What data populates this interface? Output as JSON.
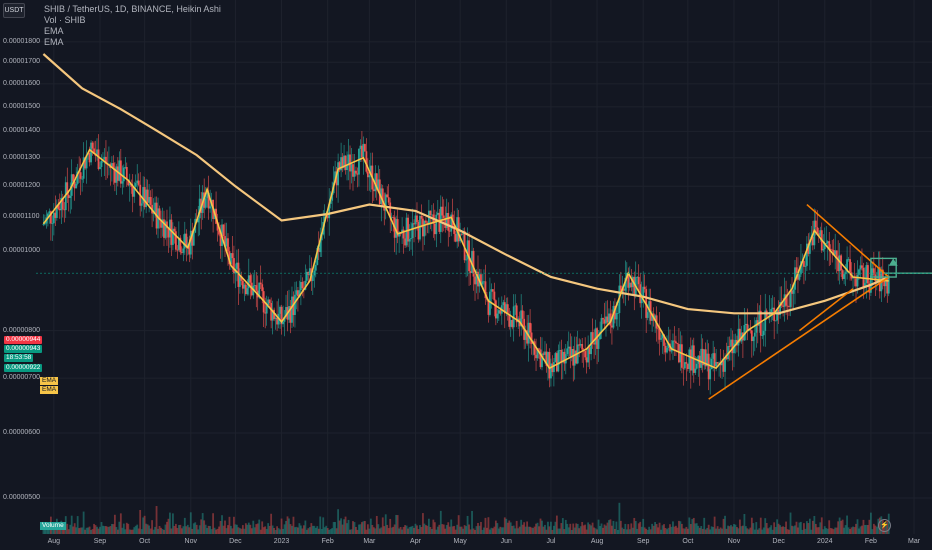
{
  "header": {
    "symbol_button": "USDT",
    "title": "SHIB / TetherUS, 1D, BINANCE, Heikin Ashi",
    "indicators": [
      "Vol · SHIB",
      "EMA",
      "EMA"
    ]
  },
  "price_axis": {
    "labels": [
      "0.00001800",
      "0.00001700",
      "0.00001600",
      "0.00001500",
      "0.00001400",
      "0.00001300",
      "0.00001200",
      "0.00001100",
      "0.00001000",
      "0.00000800",
      "0.00000700",
      "0.00000600",
      "0.00000500"
    ],
    "tags": [
      {
        "text": "0.00000944",
        "color": "#f23645"
      },
      {
        "text": "0.00000943",
        "color": "#089981"
      },
      {
        "text": "18:53:58",
        "color": "#089981"
      },
      {
        "text": "0.00000922",
        "color": "#089981"
      }
    ],
    "ema_tags": [
      "EMA",
      "EMA"
    ],
    "volume_tag": "Volume"
  },
  "time_axis": {
    "labels": [
      "Aug",
      "Sep",
      "Oct",
      "Nov",
      "Dec",
      "2023",
      "Feb",
      "Mar",
      "Apr",
      "May",
      "Jun",
      "Jul",
      "Aug",
      "Sep",
      "Oct",
      "Nov",
      "Dec",
      "2024",
      "Feb",
      "Mar"
    ]
  },
  "colors": {
    "up": "#26a69a",
    "down": "#ef5350",
    "ema_fast": "#f7c548",
    "ema_slow": "#f5c77e",
    "trend": "#f57c00",
    "target": "#4caf8f"
  },
  "chart_data": {
    "type": "line",
    "title": "SHIB / TetherUS, 1D, BINANCE, Heikin Ashi",
    "series": [
      {
        "name": "EMA",
        "x": [
          "2022-07-25",
          "2022-08-20",
          "2022-09-15",
          "2022-10-10",
          "2022-11-05",
          "2022-12-01",
          "2023-01-01",
          "2023-02-01",
          "2023-03-01",
          "2023-04-01",
          "2023-05-01",
          "2023-06-01",
          "2023-07-01",
          "2023-08-01",
          "2023-09-01",
          "2023-10-01",
          "2023-11-01",
          "2023-12-01",
          "2024-01-01",
          "2024-02-01",
          "2024-02-13"
        ],
        "values": [
          1.74e-05,
          1.58e-05,
          1.49e-05,
          1.4e-05,
          1.31e-05,
          1.2e-05,
          1.09e-05,
          1.11e-05,
          1.14e-05,
          1.12e-05,
          1.06e-05,
          9.9e-06,
          9.3e-06,
          9e-06,
          8.8e-06,
          8.5e-06,
          8.4e-06,
          8.4e-06,
          8.7e-06,
          9.1e-06,
          9.3e-06
        ]
      },
      {
        "name": "EMA",
        "x": [
          "2022-07-25",
          "2022-08-12",
          "2022-08-25",
          "2022-09-20",
          "2022-10-10",
          "2022-10-30",
          "2022-11-12",
          "2022-11-28",
          "2022-12-20",
          "2023-01-01",
          "2023-01-20",
          "2023-02-08",
          "2023-02-25",
          "2023-03-20",
          "2023-04-10",
          "2023-04-25",
          "2023-05-20",
          "2023-06-10",
          "2023-06-30",
          "2023-07-25",
          "2023-08-10",
          "2023-08-22",
          "2023-09-20",
          "2023-10-20",
          "2023-11-10",
          "2023-11-28",
          "2023-12-10",
          "2023-12-25",
          "2024-01-05",
          "2024-01-20",
          "2024-02-13"
        ],
        "values": [
          1.08e-05,
          1.19e-05,
          1.33e-05,
          1.22e-05,
          1.1e-05,
          1.01e-05,
          1.19e-05,
          9.6e-06,
          8.7e-06,
          8.2e-06,
          9.2e-06,
          1.26e-05,
          1.3e-05,
          1.05e-05,
          1.08e-05,
          1.1e-05,
          8.7e-06,
          8.2e-06,
          7.2e-06,
          7.6e-06,
          8.2e-06,
          9.4e-06,
          7.6e-06,
          7.2e-06,
          8e-06,
          8.4e-06,
          9e-06,
          1.06e-05,
          1e-05,
          9.3e-06,
          9.2e-06
        ]
      }
    ],
    "ylim": [
      4.7e-06,
      1.82e-05
    ],
    "grid": true,
    "legend": "top-left"
  }
}
